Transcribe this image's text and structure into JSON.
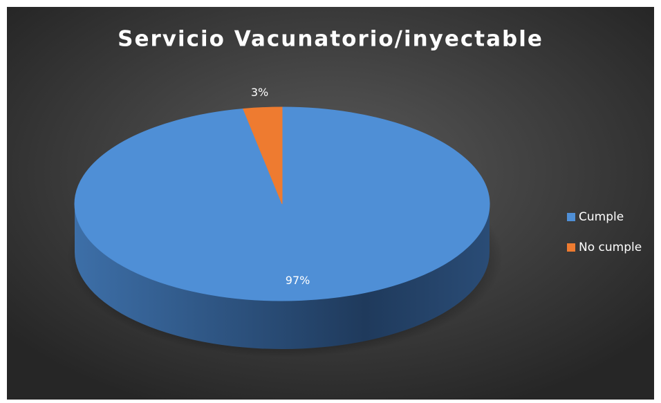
{
  "chart_data": {
    "type": "pie",
    "title": "Servicio Vacunatorio/inyectable",
    "categories": [
      "Cumple",
      "No cumple"
    ],
    "values": [
      97,
      3
    ],
    "value_labels": [
      "97%",
      "3%"
    ],
    "colors": [
      "#4f8fd6",
      "#ee7b30"
    ],
    "legend": "right"
  }
}
